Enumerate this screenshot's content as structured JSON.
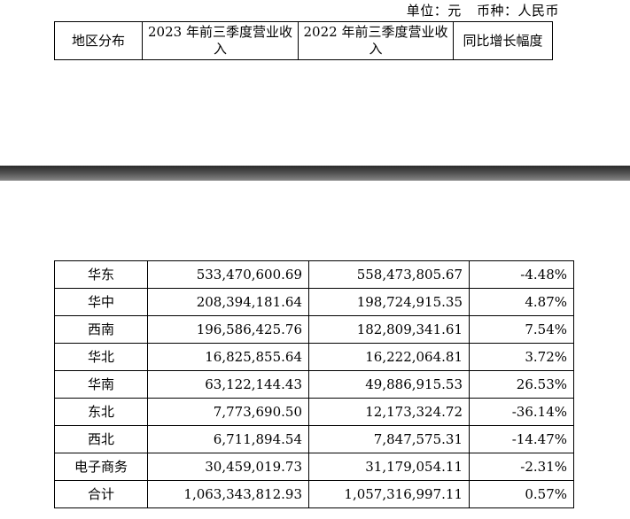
{
  "unit": {
    "unit_label": "单位：元",
    "currency_label": "币种：人民币"
  },
  "table": {
    "headers": [
      "地区分布",
      "2023 年前三季度营业收入",
      "2022 年前三季度营业收入",
      "同比增长幅度"
    ],
    "rows": [
      [
        "华东",
        "533,470,600.69",
        "558,473,805.67",
        "-4.48%"
      ],
      [
        "华中",
        "208,394,181.64",
        "198,724,915.35",
        "4.87%"
      ],
      [
        "西南",
        "196,586,425.76",
        "182,809,341.61",
        "7.54%"
      ],
      [
        "华北",
        "16,825,855.64",
        "16,222,064.81",
        "3.72%"
      ],
      [
        "华南",
        "63,122,144.43",
        "49,886,915.53",
        "26.53%"
      ],
      [
        "东北",
        "7,773,690.50",
        "12,173,324.72",
        "-36.14%"
      ],
      [
        "西北",
        "6,711,894.54",
        "7,847,575.31",
        "-14.47%"
      ],
      [
        "电子商务",
        "30,459,019.73",
        "31,179,054.11",
        "-2.31%"
      ],
      [
        "合计",
        "1,063,343,812.93",
        "1,057,316,997.11",
        "0.57%"
      ]
    ]
  }
}
